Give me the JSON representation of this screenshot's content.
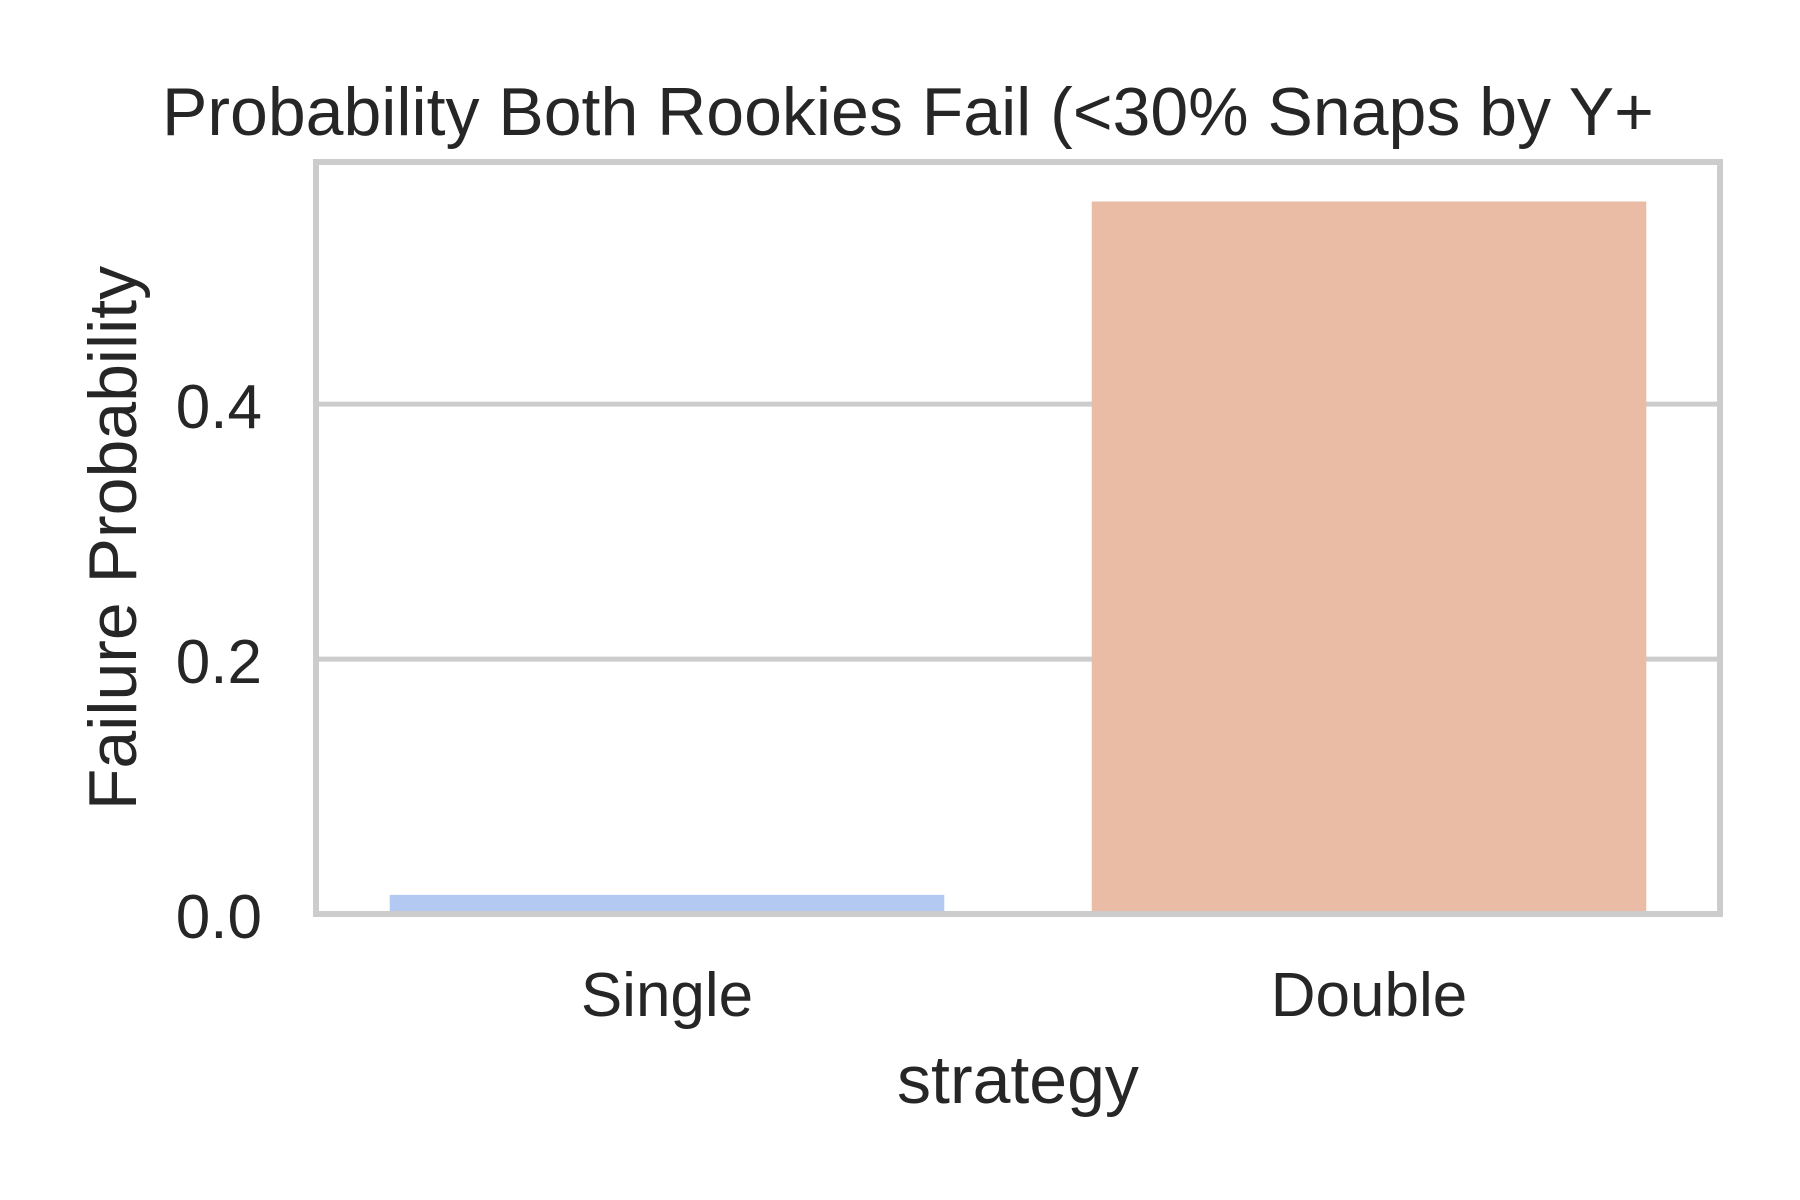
{
  "chart_data": {
    "type": "bar",
    "title": "Probability Both Rookies Fail (<30% Snaps by Y+",
    "xlabel": "strategy",
    "ylabel": "Failure Probability",
    "categories": [
      "Single",
      "Double"
    ],
    "values": [
      0.015,
      0.559
    ],
    "colors": [
      "#b4c9f2",
      "#eabca6"
    ],
    "ylim": [
      0.0,
      0.59
    ],
    "yticks": [
      0.0,
      0.2,
      0.4
    ],
    "ytick_labels": [
      "0.0",
      "0.2",
      "0.4"
    ],
    "grid": "horizontal",
    "frame_color": "#cccccc",
    "text_color": "#262626",
    "background": "#ffffff"
  }
}
